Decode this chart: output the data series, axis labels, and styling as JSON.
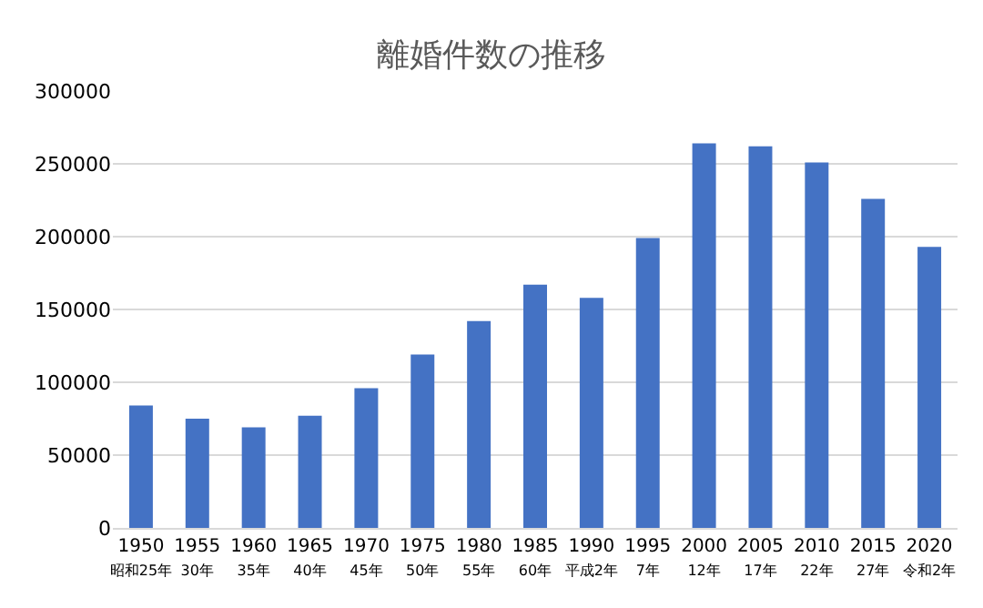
{
  "chart_data": {
    "type": "bar",
    "title": "離婚件数の推移",
    "categories": [
      "1950\n昭和25年",
      "1955\n30年",
      "1960\n35年",
      "1965\n40年",
      "1970\n45年",
      "1975\n50年",
      "1980\n55年",
      "1985\n60年",
      "1990\n平成2年",
      "1995\n7年",
      "2000\n12年",
      "2005\n17年",
      "2010\n22年",
      "2015\n27年",
      "2020\n令和2年"
    ],
    "values": [
      84000,
      75000,
      69000,
      77000,
      96000,
      119000,
      142000,
      167000,
      158000,
      199000,
      264000,
      262000,
      251000,
      226000,
      193000
    ],
    "color": "#4472c4",
    "ylim": [
      0,
      300000
    ],
    "yticks": [
      0,
      50000,
      100000,
      150000,
      200000,
      250000,
      300000
    ],
    "grid": "y"
  }
}
